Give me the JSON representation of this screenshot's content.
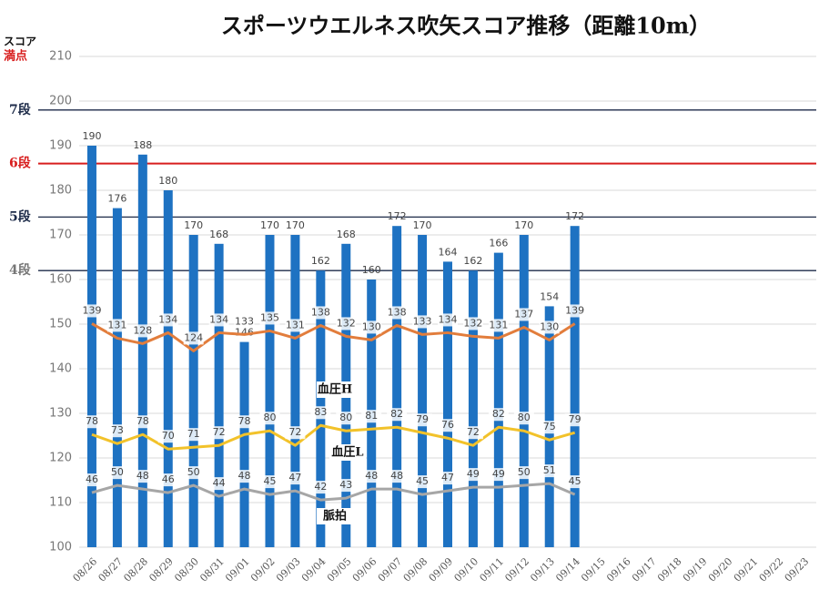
{
  "chart_data": {
    "type": "bar",
    "title": "スポーツウエルネス吹矢スコア推移（距離10m）",
    "y_axis_label": "スコア",
    "max_label": "満点",
    "categories": [
      "08/26",
      "08/27",
      "08/28",
      "08/29",
      "08/30",
      "08/31",
      "09/01",
      "09/02",
      "09/03",
      "09/04",
      "09/05",
      "09/06",
      "09/07",
      "09/08",
      "09/09",
      "09/10",
      "09/11",
      "09/12",
      "09/13",
      "09/14",
      "09/15",
      "09/16",
      "09/17",
      "09/18",
      "09/19",
      "09/20",
      "09/21",
      "09/22",
      "09/23"
    ],
    "values": [
      190,
      176,
      188,
      180,
      170,
      168,
      146,
      170,
      170,
      162,
      168,
      160,
      172,
      170,
      164,
      162,
      166,
      170,
      154,
      172,
      null,
      null,
      null,
      null,
      null,
      null,
      null,
      null,
      null
    ],
    "color": "#1e72c2",
    "ylim": [
      100,
      210
    ],
    "yticks": [
      100,
      110,
      120,
      130,
      140,
      150,
      160,
      170,
      180,
      190,
      200,
      210
    ],
    "grid": true,
    "y2lim": [
      16,
      286
    ],
    "series": [
      {
        "name": "血圧H",
        "color": "#e27d3c",
        "axis": "y2",
        "values": [
          139,
          131,
          128,
          134,
          124,
          134,
          133,
          135,
          131,
          138,
          132,
          130,
          138,
          133,
          134,
          132,
          131,
          137,
          130,
          139,
          null,
          null,
          null,
          null,
          null,
          null,
          null,
          null,
          null
        ]
      },
      {
        "name": "血圧L",
        "color": "#f2c22a",
        "axis": "y2",
        "values": [
          78,
          73,
          78,
          70,
          71,
          72,
          78,
          80,
          72,
          83,
          80,
          81,
          82,
          79,
          76,
          72,
          82,
          80,
          75,
          79,
          null,
          null,
          null,
          null,
          null,
          null,
          null,
          null,
          null
        ]
      },
      {
        "name": "脈拍",
        "color": "#a6a6a6",
        "axis": "y2",
        "values": [
          46,
          50,
          48,
          46,
          50,
          44,
          48,
          45,
          47,
          42,
          43,
          48,
          48,
          45,
          47,
          49,
          49,
          50,
          51,
          45,
          null,
          null,
          null,
          null,
          null,
          null,
          null,
          null,
          null
        ]
      }
    ],
    "reference_lines": [
      {
        "label": "7段",
        "value": 198,
        "color": "#1c2a48"
      },
      {
        "label": "6段",
        "value": 186,
        "color": "#d81e1e"
      },
      {
        "label": "5段",
        "value": 174,
        "color": "#1c2a48"
      },
      {
        "label": "4段",
        "value": 162,
        "color": "#1c2a48"
      }
    ]
  }
}
